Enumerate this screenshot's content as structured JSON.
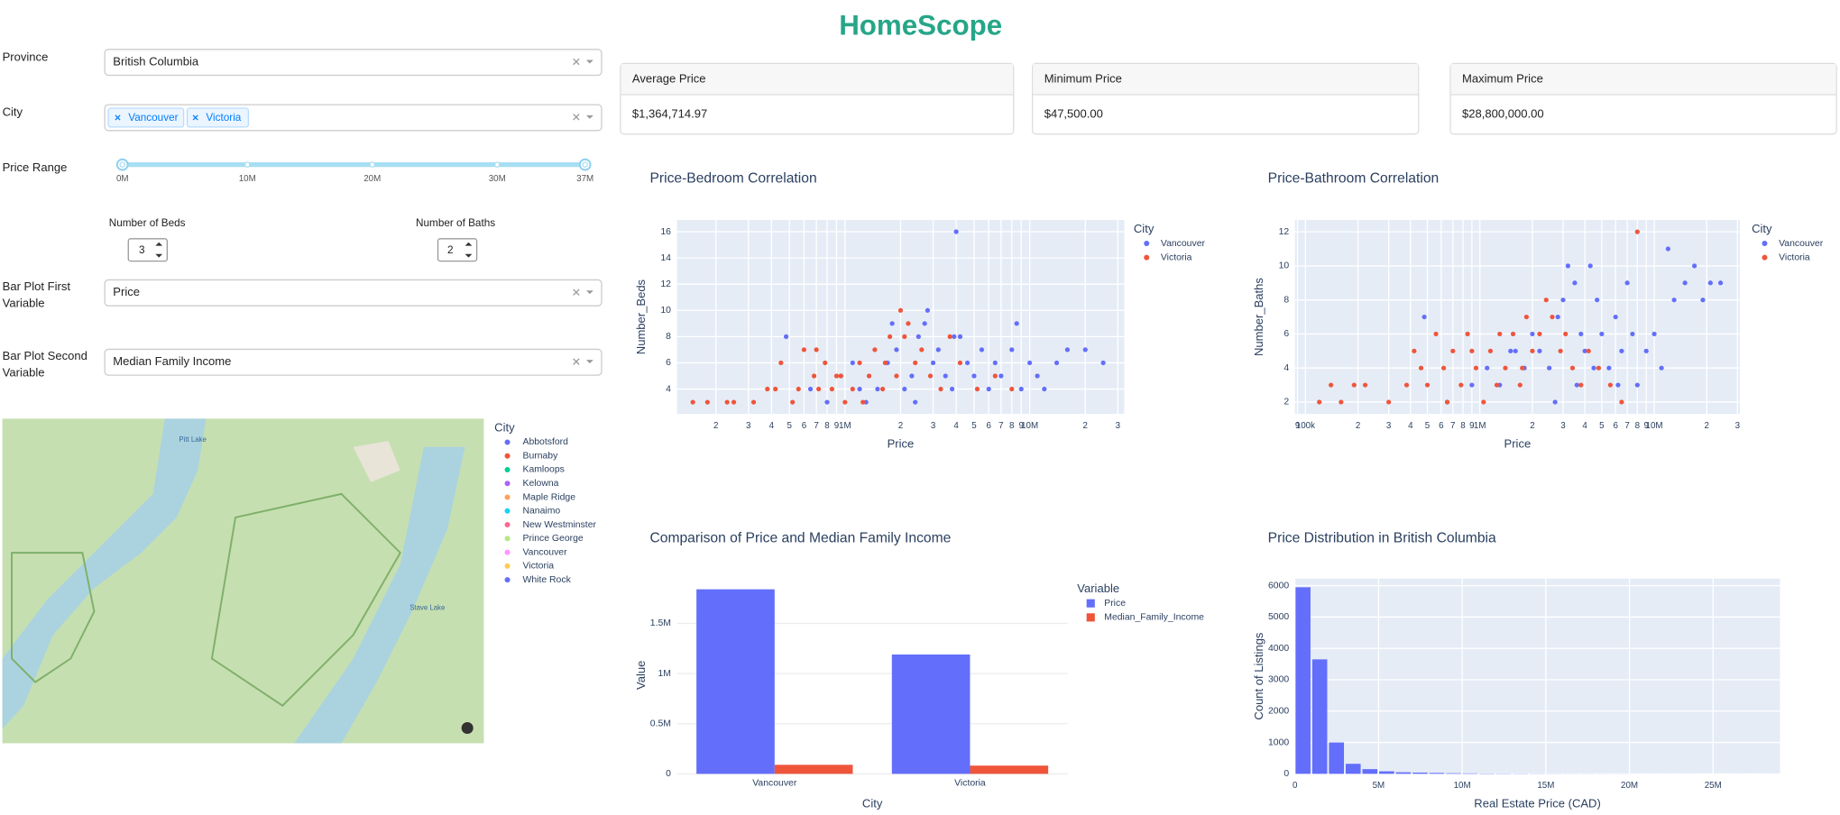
{
  "header": {
    "title": "HomeScope"
  },
  "filters": {
    "province": {
      "label": "Province",
      "value": "British Columbia"
    },
    "city": {
      "label": "City",
      "tags": [
        "Vancouver",
        "Victoria"
      ]
    },
    "price_range": {
      "label": "Price Range",
      "marks": [
        "0M",
        "10M",
        "20M",
        "30M",
        "37M"
      ]
    },
    "beds": {
      "label": "Number of Beds",
      "value": 3
    },
    "baths": {
      "label": "Number of Baths",
      "value": 2
    },
    "bar_first": {
      "label": "Bar Plot First Variable",
      "value": "Price"
    },
    "bar_second": {
      "label": "Bar Plot Second Variable",
      "value": "Median Family Income"
    }
  },
  "cards": [
    {
      "title": "Average Price",
      "value": "$1,364,714.97"
    },
    {
      "title": "Minimum Price",
      "value": "$47,500.00"
    },
    {
      "title": "Maximum Price",
      "value": "$28,800,000.00"
    }
  ],
  "map": {
    "legend_title": "City",
    "labels": [
      "Pitt Lake",
      "Stave Lake"
    ],
    "entries": [
      {
        "name": "Abbotsford",
        "color": "#636efa"
      },
      {
        "name": "Burnaby",
        "color": "#ef553b"
      },
      {
        "name": "Kamloops",
        "color": "#00cc96"
      },
      {
        "name": "Kelowna",
        "color": "#ab63fa"
      },
      {
        "name": "Maple Ridge",
        "color": "#ffa15a"
      },
      {
        "name": "Nanaimo",
        "color": "#19d3f3"
      },
      {
        "name": "New Westminster",
        "color": "#ff6692"
      },
      {
        "name": "Prince George",
        "color": "#b6e880"
      },
      {
        "name": "Vancouver",
        "color": "#ff97ff"
      },
      {
        "name": "Victoria",
        "color": "#fecb52"
      },
      {
        "name": "White Rock",
        "color": "#636efa"
      }
    ]
  },
  "chart_data": [
    {
      "type": "scatter",
      "title": "Price-Bedroom Correlation",
      "x_label": "Price",
      "y_label": "Number_Beds",
      "legend_title": "City",
      "xscale": "log",
      "grid": true,
      "xlim": [
        123000,
        32500000
      ],
      "ylim": [
        2.1,
        16.9
      ],
      "xticks": [
        {
          "value": 200000,
          "label": "2"
        },
        {
          "value": 300000,
          "label": "3"
        },
        {
          "value": 400000,
          "label": "4"
        },
        {
          "value": 500000,
          "label": "5"
        },
        {
          "value": 600000,
          "label": "6"
        },
        {
          "value": 700000,
          "label": "7"
        },
        {
          "value": 800000,
          "label": "8"
        },
        {
          "value": 900000,
          "label": "9"
        },
        {
          "value": 1000000,
          "label": "1M"
        },
        {
          "value": 2000000,
          "label": "2"
        },
        {
          "value": 3000000,
          "label": "3"
        },
        {
          "value": 4000000,
          "label": "4"
        },
        {
          "value": 5000000,
          "label": "5"
        },
        {
          "value": 6000000,
          "label": "6"
        },
        {
          "value": 7000000,
          "label": "7"
        },
        {
          "value": 8000000,
          "label": "8"
        },
        {
          "value": 9000000,
          "label": "9"
        },
        {
          "value": 10000000,
          "label": "10M"
        },
        {
          "value": 20000000,
          "label": "2"
        },
        {
          "value": 30000000,
          "label": "3"
        }
      ],
      "yticks": [
        4,
        6,
        8,
        10,
        12,
        14,
        16
      ],
      "series": [
        {
          "name": "Vancouver",
          "color": "#636efa",
          "x": [
            480000,
            650000,
            800000,
            950000,
            1100000,
            1300000,
            1500000,
            1700000,
            1900000,
            2100000,
            2300000,
            2500000,
            2700000,
            3000000,
            3200000,
            3500000,
            3800000,
            4000000,
            4200000,
            4600000,
            5000000,
            5500000,
            6000000,
            6500000,
            7000000,
            8000000,
            9000000,
            10000000,
            11000000,
            12000000,
            14000000,
            16000000,
            20000000,
            25000000,
            2800000,
            1800000,
            3900000,
            1200000,
            2400000,
            8500000
          ],
          "values": [
            8,
            4,
            3,
            5,
            6,
            3,
            4,
            6,
            7,
            4,
            5,
            8,
            9,
            6,
            7,
            5,
            4,
            16,
            8,
            6,
            5,
            7,
            4,
            6,
            5,
            7,
            4,
            6,
            5,
            4,
            6,
            7,
            7,
            6,
            10,
            9,
            8,
            4,
            3,
            9
          ]
        },
        {
          "name": "Victoria",
          "color": "#ef553b",
          "x": [
            150000,
            180000,
            230000,
            250000,
            320000,
            380000,
            420000,
            450000,
            520000,
            560000,
            600000,
            680000,
            720000,
            780000,
            850000,
            900000,
            1000000,
            1100000,
            1200000,
            1350000,
            1450000,
            1600000,
            1750000,
            1900000,
            2000000,
            2200000,
            2400000,
            2600000,
            2900000,
            3300000,
            3700000,
            4200000,
            5200000,
            6500000,
            8000000,
            2100000,
            1650000,
            1250000,
            950000,
            700000
          ],
          "values": [
            3,
            3,
            3,
            3,
            3,
            4,
            4,
            6,
            3,
            4,
            7,
            5,
            4,
            6,
            4,
            5,
            3,
            4,
            6,
            5,
            7,
            4,
            8,
            5,
            10,
            9,
            6,
            7,
            5,
            4,
            8,
            6,
            4,
            5,
            4,
            8,
            6,
            3,
            5,
            7
          ]
        }
      ]
    },
    {
      "type": "scatter",
      "title": "Price-Bathroom Correlation",
      "x_label": "Price",
      "y_label": "Number_Baths",
      "legend_title": "City",
      "xscale": "log",
      "grid": true,
      "xlim": [
        87000,
        31000000
      ],
      "ylim": [
        1.3,
        12.7
      ],
      "xticks": [
        {
          "value": 90000,
          "label": "9"
        },
        {
          "value": 100000,
          "label": "100k"
        },
        {
          "value": 200000,
          "label": "2"
        },
        {
          "value": 300000,
          "label": "3"
        },
        {
          "value": 400000,
          "label": "4"
        },
        {
          "value": 500000,
          "label": "5"
        },
        {
          "value": 600000,
          "label": "6"
        },
        {
          "value": 700000,
          "label": "7"
        },
        {
          "value": 800000,
          "label": "8"
        },
        {
          "value": 900000,
          "label": "9"
        },
        {
          "value": 1000000,
          "label": "1M"
        },
        {
          "value": 2000000,
          "label": "2"
        },
        {
          "value": 3000000,
          "label": "3"
        },
        {
          "value": 4000000,
          "label": "4"
        },
        {
          "value": 5000000,
          "label": "5"
        },
        {
          "value": 6000000,
          "label": "6"
        },
        {
          "value": 7000000,
          "label": "7"
        },
        {
          "value": 8000000,
          "label": "8"
        },
        {
          "value": 9000000,
          "label": "9"
        },
        {
          "value": 10000000,
          "label": "10M"
        },
        {
          "value": 20000000,
          "label": "2"
        },
        {
          "value": 30000000,
          "label": "3"
        }
      ],
      "yticks": [
        2,
        4,
        6,
        8,
        10,
        12
      ],
      "series": [
        {
          "name": "Vancouver",
          "color": "#636efa",
          "x": [
            480000,
            650000,
            900000,
            1100000,
            1300000,
            1500000,
            1800000,
            2000000,
            2200000,
            2500000,
            2800000,
            3000000,
            3200000,
            3500000,
            3800000,
            4000000,
            4300000,
            4700000,
            5000000,
            5500000,
            6000000,
            6500000,
            7000000,
            7500000,
            8000000,
            9000000,
            10000000,
            11000000,
            12000000,
            13000000,
            15000000,
            17000000,
            19000000,
            21000000,
            24000000,
            3600000,
            2700000,
            4500000,
            6200000,
            1600000
          ],
          "values": [
            7,
            2,
            3,
            4,
            3,
            5,
            4,
            6,
            5,
            4,
            7,
            8,
            10,
            9,
            6,
            5,
            10,
            8,
            6,
            4,
            7,
            5,
            9,
            6,
            3,
            5,
            6,
            4,
            11,
            8,
            9,
            10,
            8,
            9,
            9,
            3,
            2,
            4,
            3,
            5
          ]
        },
        {
          "name": "Victoria",
          "color": "#ef553b",
          "x": [
            120000,
            140000,
            160000,
            190000,
            220000,
            300000,
            380000,
            420000,
            460000,
            500000,
            560000,
            620000,
            700000,
            780000,
            850000,
            950000,
            1050000,
            1150000,
            1300000,
            1400000,
            1550000,
            1700000,
            1850000,
            2000000,
            2200000,
            2400000,
            2600000,
            2900000,
            3100000,
            3400000,
            3800000,
            4200000,
            4800000,
            5600000,
            6500000,
            8000000,
            1750000,
            1250000,
            900000,
            650000
          ],
          "values": [
            2,
            3,
            2,
            3,
            3,
            2,
            3,
            5,
            4,
            3,
            6,
            4,
            5,
            3,
            6,
            4,
            2,
            5,
            6,
            4,
            6,
            3,
            7,
            5,
            6,
            8,
            7,
            5,
            6,
            4,
            3,
            5,
            4,
            3,
            2,
            12,
            4,
            3,
            5,
            2
          ]
        }
      ]
    },
    {
      "type": "bar",
      "title": "Comparison of Price and Median Family Income",
      "x_label": "City",
      "y_label": "Value",
      "legend_title": "Variable",
      "grid": true,
      "categories": [
        "Vancouver",
        "Victoria"
      ],
      "ylim": [
        0,
        1970000
      ],
      "yticks": [
        0,
        {
          "value": 500000,
          "label": "0.5M"
        },
        {
          "value": 1000000,
          "label": "1M"
        },
        {
          "value": 1500000,
          "label": "1.5M"
        }
      ],
      "series": [
        {
          "name": "Price",
          "color": "#636efa",
          "values": [
            1840000,
            1190000
          ]
        },
        {
          "name": "Median_Family_Income",
          "color": "#ef553b",
          "values": [
            90000,
            82000
          ]
        }
      ]
    },
    {
      "type": "histogram",
      "title": "Price Distribution in British Columbia",
      "x_label": "Real Estate Price (CAD)",
      "y_label": "Count of Listings",
      "grid": true,
      "color": "#636efa",
      "bins": [
        0,
        1000000,
        2000000,
        3000000,
        4000000,
        5000000,
        6000000,
        7000000,
        8000000,
        9000000,
        10000000,
        11000000,
        12000000,
        13000000,
        14000000,
        15000000,
        16000000,
        17000000,
        18000000,
        19000000,
        20000000,
        21000000,
        22000000,
        23000000,
        24000000,
        25000000,
        26000000,
        27000000,
        28000000,
        29000000
      ],
      "values": [
        5950,
        3650,
        1000,
        320,
        150,
        80,
        50,
        40,
        30,
        20,
        15,
        10,
        8,
        6,
        5,
        4,
        3,
        3,
        2,
        2,
        1,
        1,
        1,
        1,
        0,
        0,
        1,
        0,
        1
      ],
      "xlim": [
        0,
        29000000
      ],
      "ylim": [
        0,
        6225
      ],
      "xticks": [
        0,
        {
          "value": 5000000,
          "label": "5M"
        },
        {
          "value": 10000000,
          "label": "10M"
        },
        {
          "value": 15000000,
          "label": "15M"
        },
        {
          "value": 20000000,
          "label": "20M"
        },
        {
          "value": 25000000,
          "label": "25M"
        }
      ],
      "yticks": [
        0,
        1000,
        2000,
        3000,
        4000,
        5000,
        6000
      ]
    }
  ]
}
